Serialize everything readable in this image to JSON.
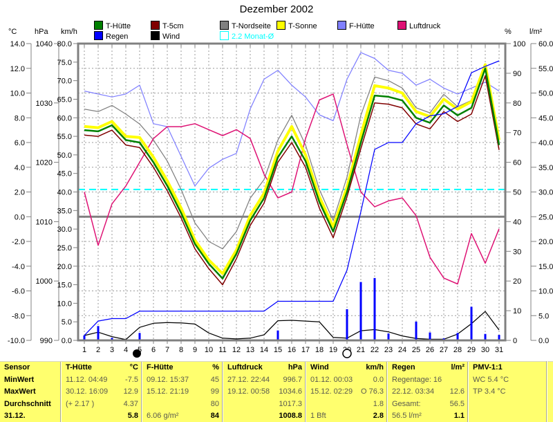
{
  "title": "Dezember 2002",
  "colors": {
    "t_huette": "#008000",
    "t_5cm": "#800000",
    "t_nordseite": "#808080",
    "t_sonne": "#FFFF00",
    "f_huette": "#8080FF",
    "luftdruck": "#DE1274",
    "regen": "#0000FF",
    "wind": "#000000",
    "monat_avg": "#00FFFF",
    "grid": "#9a9a9a",
    "frame": "#808080",
    "table_bg": "#FFFF6E"
  },
  "legend": {
    "rows": [
      [
        {
          "label": "T-Hütte",
          "color": "#008000"
        },
        {
          "label": "T-5cm",
          "color": "#800000"
        },
        {
          "label": "T-Nordseite",
          "color": "#808080"
        },
        {
          "label": "T-Sonne",
          "color": "#FFFF00"
        },
        {
          "label": "F-Hütte",
          "color": "#8080FF"
        },
        {
          "label": "Luftdruck",
          "color": "#DE1274"
        }
      ],
      [
        {
          "label": "Regen",
          "color": "#0000FF"
        },
        {
          "label": "Wind",
          "color": "#000000"
        },
        {
          "label": "2.2 Monat-Ø",
          "color": "#00FFFF",
          "open_swatch": true
        }
      ]
    ]
  },
  "axes": {
    "left": [
      {
        "unit": "°C",
        "min": -10,
        "max": 14,
        "step": 2,
        "decimals": 1
      },
      {
        "unit": "hPa",
        "min": 990,
        "max": 1040,
        "step": 10,
        "decimals": 0
      },
      {
        "unit": "km/h",
        "min": 0,
        "max": 80,
        "step": 5,
        "decimals": 1
      }
    ],
    "right": [
      {
        "unit": "%",
        "min": 0,
        "max": 100,
        "step": 10,
        "decimals": 0
      },
      {
        "unit": "l/m²",
        "min": 0,
        "max": 60,
        "step": 5,
        "decimals": 1
      }
    ],
    "x": {
      "days": 31
    }
  },
  "chart_data": {
    "type": "line+bar",
    "days": 31,
    "series": [
      {
        "name": "T-Hütte",
        "axis": "°C",
        "color": "#008000",
        "values": [
          7.0,
          6.9,
          7.4,
          6.2,
          6.0,
          4.4,
          2.5,
          0.3,
          -2.2,
          -3.8,
          -5.0,
          -3.0,
          -0.3,
          1.5,
          4.8,
          6.5,
          4.5,
          1.2,
          -1.2,
          2.0,
          6.0,
          9.8,
          9.7,
          9.4,
          8.0,
          7.6,
          9.0,
          8.2,
          8.8,
          12.0,
          5.8
        ]
      },
      {
        "name": "T-5cm",
        "axis": "°C",
        "color": "#800000",
        "values": [
          6.6,
          6.5,
          7.0,
          5.8,
          5.6,
          4.0,
          2.1,
          -0.1,
          -2.6,
          -4.2,
          -5.5,
          -3.4,
          -0.7,
          1.1,
          4.4,
          6.0,
          4.0,
          0.7,
          -1.7,
          1.6,
          5.5,
          9.2,
          9.1,
          8.8,
          7.5,
          7.1,
          8.5,
          7.7,
          8.3,
          11.4,
          5.4
        ]
      },
      {
        "name": "T-Nordseite",
        "axis": "°C",
        "color": "#808080",
        "values": [
          8.7,
          8.5,
          9.0,
          8.3,
          7.5,
          6.2,
          4.5,
          2.2,
          -0.5,
          -2.0,
          -2.6,
          -1.2,
          1.5,
          3.0,
          6.2,
          8.2,
          5.8,
          2.2,
          -0.3,
          3.2,
          8.2,
          11.3,
          11.0,
          10.4,
          8.8,
          8.4,
          9.9,
          8.9,
          9.4,
          12.2,
          6.6
        ]
      },
      {
        "name": "T-Sonne",
        "axis": "°C",
        "color": "#FFFF00",
        "values": [
          7.3,
          7.2,
          7.7,
          6.5,
          6.4,
          4.8,
          2.9,
          0.7,
          -1.9,
          -3.5,
          -4.6,
          -2.7,
          0.1,
          1.9,
          5.3,
          7.3,
          5.0,
          1.6,
          -0.8,
          2.4,
          6.6,
          10.6,
          10.4,
          10.0,
          8.5,
          8.1,
          9.5,
          8.7,
          9.3,
          12.3,
          6.2
        ]
      },
      {
        "name": "F-Hütte",
        "axis": "%",
        "color": "#8080FF",
        "values": [
          84,
          83,
          82,
          83,
          86,
          73,
          72,
          62,
          52,
          58,
          61,
          63,
          78,
          88,
          91,
          86,
          82,
          76,
          74,
          88,
          97,
          95,
          91,
          90,
          86,
          88,
          85,
          83,
          85,
          87,
          84
        ]
      },
      {
        "name": "Luftdruck",
        "axis": "hPa",
        "color": "#DE1274",
        "values": [
          1015,
          1006,
          1013,
          1016,
          1020,
          1024,
          1026,
          1026,
          1026.5,
          1025.5,
          1024.5,
          1025.5,
          1024,
          1018,
          1014,
          1015,
          1024,
          1030.5,
          1031.5,
          1023,
          1015,
          1012.5,
          1013.5,
          1014,
          1011,
          1004,
          1000.5,
          999.5,
          1008,
          1003,
          1008.8
        ]
      },
      {
        "name": "Wind",
        "axis": "km/h",
        "color": "#000000",
        "values": [
          1.3,
          2.2,
          1.0,
          0.2,
          3.5,
          4.6,
          4.8,
          4.7,
          4.4,
          2.0,
          0.6,
          0.4,
          0.6,
          1.5,
          5.3,
          5.4,
          5.2,
          5.0,
          0.8,
          0.6,
          2.6,
          2.9,
          2.3,
          1.2,
          0.5,
          0.3,
          0.3,
          1.7,
          4.5,
          7.8,
          2.8
        ]
      },
      {
        "name": "Regen",
        "axis": "l/m²",
        "color": "#0000FF",
        "type": "bar",
        "cumulative_line": true,
        "values": [
          1.0,
          2.9,
          0.5,
          0,
          1.5,
          0,
          0,
          0,
          0,
          0,
          0,
          0,
          0,
          0,
          2.0,
          0,
          0,
          0,
          0,
          6.3,
          11.8,
          12.6,
          1.4,
          0,
          3.8,
          1.6,
          0.4,
          1.5,
          6.8,
          1.3,
          1.1
        ]
      }
    ],
    "average_line": {
      "label": "2.2 Monat-Ø",
      "value": 2.2,
      "axis": "°C",
      "color": "#00FFFF"
    },
    "moon_markers": [
      {
        "day": 4.8,
        "phase": "new"
      },
      {
        "day": 20,
        "phase": "full"
      }
    ]
  },
  "table": {
    "row_labels": [
      "Sensor",
      "MinWert",
      "MaxWert",
      "Durchschnitt",
      "31.12."
    ],
    "columns": [
      {
        "key": "t-huette",
        "title": "T-Hütte",
        "unit": "°C",
        "rows": [
          [
            "11.12.  04:49",
            "-7.5"
          ],
          [
            "30.12.  16:09",
            "12.9"
          ],
          [
            "(+ 2.17 )",
            "4.37"
          ],
          [
            "",
            "5.8"
          ]
        ]
      },
      {
        "key": "f-huette",
        "title": "F-Hütte",
        "unit": "%",
        "rows": [
          [
            "09.12.  15:37",
            "45"
          ],
          [
            "15.12.  21:19",
            "99"
          ],
          [
            "",
            "80"
          ],
          [
            "6.06 g/m²",
            "84"
          ]
        ]
      },
      {
        "key": "luftdruck",
        "title": "Luftdruck",
        "unit": "hPa",
        "rows": [
          [
            "27.12.  22:44",
            "996.7"
          ],
          [
            "19.12.  00:58",
            "1034.6"
          ],
          [
            "",
            "1017.3"
          ],
          [
            "",
            "1008.8"
          ]
        ]
      },
      {
        "key": "wind",
        "title": "Wind",
        "unit": "km/h",
        "rows": [
          [
            "01.12.  00:03",
            "0.0"
          ],
          [
            "15.12.  02:29",
            "O 76.3"
          ],
          [
            "",
            "1.8"
          ],
          [
            "1 Bft",
            "2.8"
          ]
        ]
      },
      {
        "key": "regen",
        "title": "Regen",
        "unit": "l/m²",
        "rows": [
          [
            "Regentage: 16",
            ""
          ],
          [
            "22.12.  03:34",
            "12.6"
          ],
          [
            "Gesamt:",
            "56.5"
          ],
          [
            "56.5 l/m²",
            "1.1"
          ]
        ]
      },
      {
        "key": "pmv",
        "title": "PMV-1:1",
        "unit": "",
        "rows": [
          [
            "WC 5.4 °C",
            ""
          ],
          [
            "TP 3.4 °C",
            ""
          ],
          [
            "",
            ""
          ],
          [
            "",
            ""
          ]
        ]
      }
    ]
  }
}
